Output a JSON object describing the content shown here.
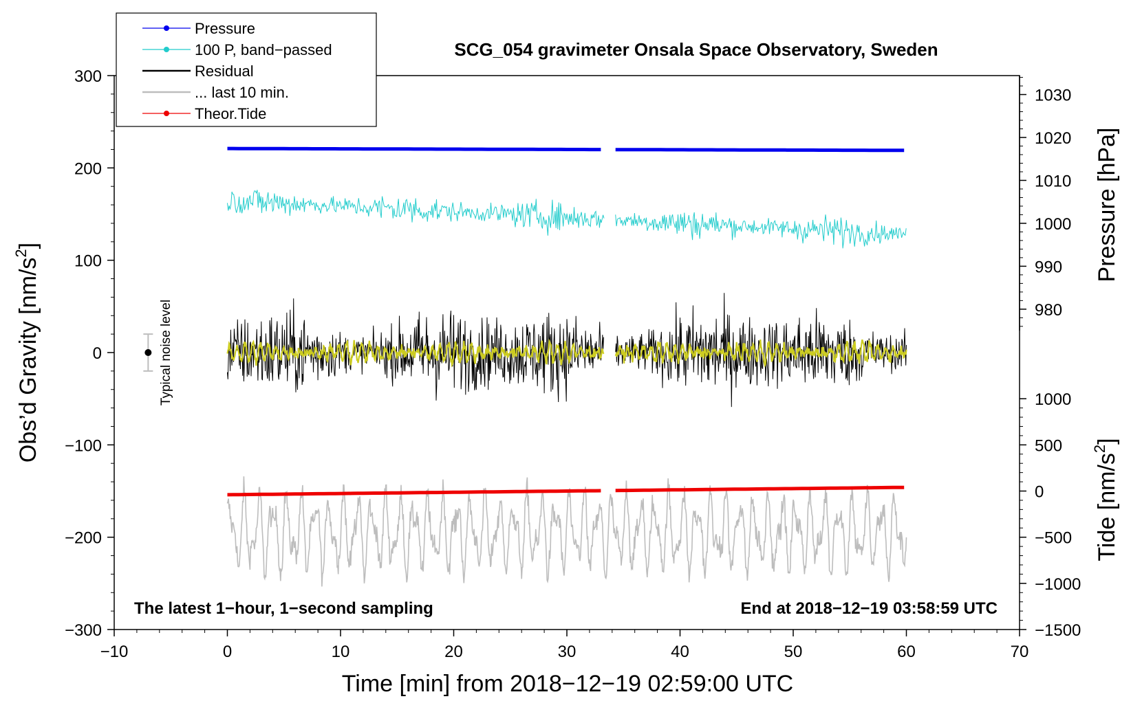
{
  "chart_data": {
    "type": "line",
    "title": "SCG_054 gravimeter Onsala Space Observatory, Sweden",
    "xlabel": "Time [min] from 2018−12−19 02:59:00 UTC",
    "ylabel_main": "Obs’d Gravity [nm/s",
    "ylabel_main_sup": "2",
    "ylabel_main_end": "]",
    "ylabel_pressure": "Pressure [hPa]",
    "ylabel_tide": "Tide [nm/s",
    "ylabel_tide_sup": "2",
    "ylabel_tide_end": "]",
    "xlim": [
      -10,
      70
    ],
    "ylim": [
      -300,
      300
    ],
    "x_ticks": [
      -10,
      0,
      10,
      20,
      30,
      40,
      50,
      60,
      70
    ],
    "x_tick_labels": [
      "−10",
      "0",
      "10",
      "20",
      "30",
      "40",
      "50",
      "60",
      "70"
    ],
    "y_ticks": [
      -300,
      -200,
      -100,
      0,
      100,
      200,
      300
    ],
    "y_tick_labels": [
      "−300",
      "−200",
      "−100",
      "0",
      "100",
      "200",
      "300"
    ],
    "pressure_axis": {
      "ticks": [
        980,
        990,
        1000,
        1010,
        1020,
        1030
      ],
      "tick_labels": [
        "980",
        "990",
        "1000",
        "1010",
        "1020",
        "1030"
      ],
      "y_at_1000": 140,
      "gravity_per_hpa": 4.65
    },
    "tide_axis": {
      "ticks": [
        -1500,
        -1000,
        -500,
        0,
        500,
        1000
      ],
      "tick_labels": [
        "−1500",
        "−1000",
        "−500",
        "0",
        "500",
        "1000"
      ],
      "y_at_0": -150,
      "gravity_per_unit": 0.1
    },
    "gap_minutes": [
      33.3,
      34.3
    ],
    "end_minute": 60,
    "series": [
      {
        "name": "Pressure",
        "color": "#0000ee",
        "level": 221,
        "end_level": 219,
        "style": "thick"
      },
      {
        "name": "100 P, band−passed",
        "color": "#22cccc",
        "level": 165,
        "end_level": 128,
        "amplitude": 9,
        "style": "noisy"
      },
      {
        "name": "Residual",
        "color": "#000000",
        "level": 0,
        "amplitude": 26,
        "style": "noisy"
      },
      {
        "name": "... last 10 min.",
        "color": "#bdbdbd",
        "level": -195,
        "amplitude": 30,
        "style": "wavy"
      },
      {
        "name": "Theor.Tide",
        "color": "#ee0000",
        "level": -154,
        "end_level": -146,
        "style": "thick"
      }
    ],
    "smoothed_color": "#cccc22",
    "legend": [
      {
        "label": "Pressure",
        "color": "#0000ee",
        "marker": true
      },
      {
        "label": "100 P, band−passed",
        "color": "#22cccc",
        "marker": true
      },
      {
        "label": "Residual",
        "color": "#000000",
        "marker": false
      },
      {
        "label": "... last 10 min.",
        "color": "#bdbdbd",
        "marker": false
      },
      {
        "label": "Theor.Tide",
        "color": "#ee0000",
        "marker": true
      }
    ],
    "noise_label": "Typical noise level",
    "noise_range": [
      -20,
      20
    ],
    "noise_x": -7,
    "annotation_left": "The latest 1−hour, 1−second sampling",
    "annotation_right": "End at 2018−12−19 03:58:59 UTC"
  }
}
